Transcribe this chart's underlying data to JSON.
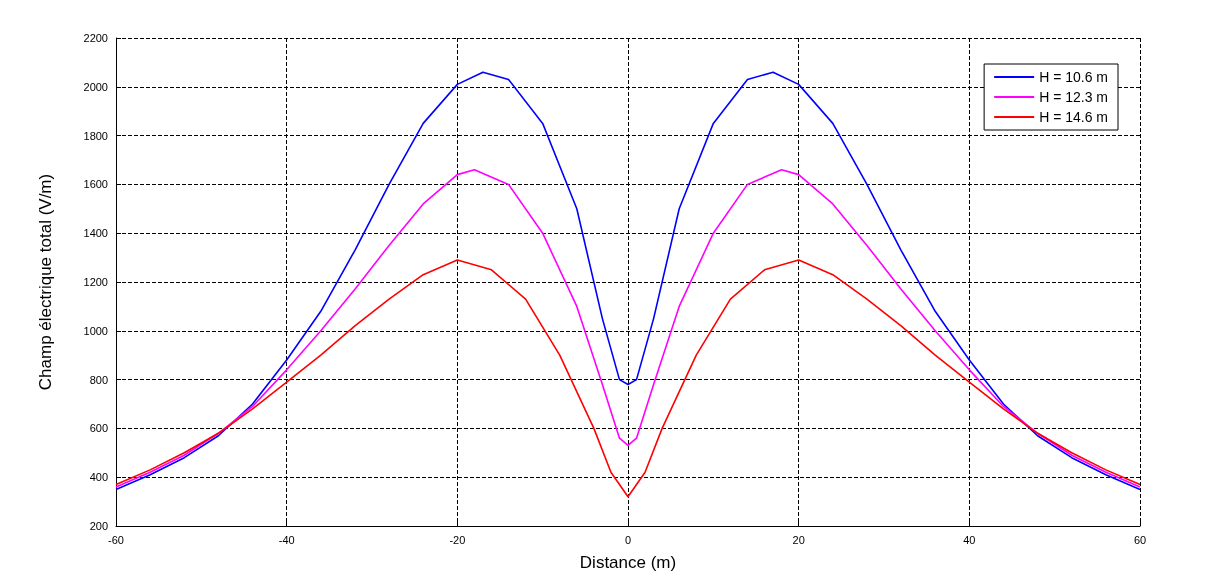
{
  "chart_data": {
    "type": "line",
    "xlabel": "Distance (m)",
    "ylabel": "Champ électrique total (V/m)",
    "xlim": [
      -60,
      60
    ],
    "xticks": [
      -60,
      -40,
      -20,
      0,
      20,
      40,
      60
    ],
    "ylim": [
      200,
      2200
    ],
    "yticks": [
      200,
      400,
      600,
      800,
      1000,
      1200,
      1400,
      1600,
      1800,
      2000,
      2200
    ],
    "grid": true,
    "legend": "top right",
    "marker": "none",
    "line_style": "solid",
    "series": [
      {
        "name": "H = 10.6 m",
        "color": "#0000ff",
        "x": [
          -60,
          -56,
          -52,
          -48,
          -44,
          -40,
          -36,
          -32,
          -28,
          -24,
          -20,
          -17,
          -14,
          -10,
          -6,
          -3,
          -1,
          0,
          1,
          3,
          6,
          10,
          14,
          17,
          20,
          24,
          28,
          32,
          36,
          40,
          44,
          48,
          52,
          56,
          60
        ],
        "values": [
          350,
          410,
          480,
          570,
          700,
          880,
          1080,
          1330,
          1600,
          1850,
          2010,
          2060,
          2030,
          1850,
          1500,
          1050,
          800,
          780,
          800,
          1050,
          1500,
          1850,
          2030,
          2060,
          2010,
          1850,
          1600,
          1330,
          1080,
          880,
          700,
          570,
          480,
          410,
          350
        ]
      },
      {
        "name": "H = 12.3 m",
        "color": "#ff00ff",
        "x": [
          -60,
          -56,
          -52,
          -48,
          -44,
          -40,
          -36,
          -32,
          -28,
          -24,
          -20,
          -18,
          -14,
          -10,
          -6,
          -3,
          -1,
          0,
          1,
          3,
          6,
          10,
          14,
          18,
          20,
          24,
          28,
          32,
          36,
          40,
          44,
          48,
          52,
          56,
          60
        ],
        "values": [
          360,
          420,
          490,
          580,
          690,
          840,
          1000,
          1170,
          1350,
          1520,
          1640,
          1660,
          1600,
          1400,
          1100,
          780,
          560,
          530,
          560,
          780,
          1100,
          1400,
          1600,
          1660,
          1640,
          1520,
          1350,
          1170,
          1000,
          840,
          690,
          580,
          490,
          420,
          360
        ]
      },
      {
        "name": "H = 14.6 m",
        "color": "#ff0000",
        "x": [
          -60,
          -56,
          -52,
          -48,
          -44,
          -40,
          -36,
          -32,
          -28,
          -24,
          -20,
          -16,
          -12,
          -8,
          -4,
          -2,
          0,
          2,
          4,
          8,
          12,
          16,
          20,
          24,
          28,
          32,
          36,
          40,
          44,
          48,
          52,
          56,
          60
        ],
        "values": [
          370,
          430,
          500,
          580,
          680,
          790,
          900,
          1020,
          1130,
          1230,
          1290,
          1250,
          1130,
          900,
          600,
          420,
          320,
          420,
          600,
          900,
          1130,
          1250,
          1290,
          1230,
          1130,
          1020,
          900,
          790,
          680,
          580,
          500,
          430,
          370
        ]
      }
    ]
  }
}
